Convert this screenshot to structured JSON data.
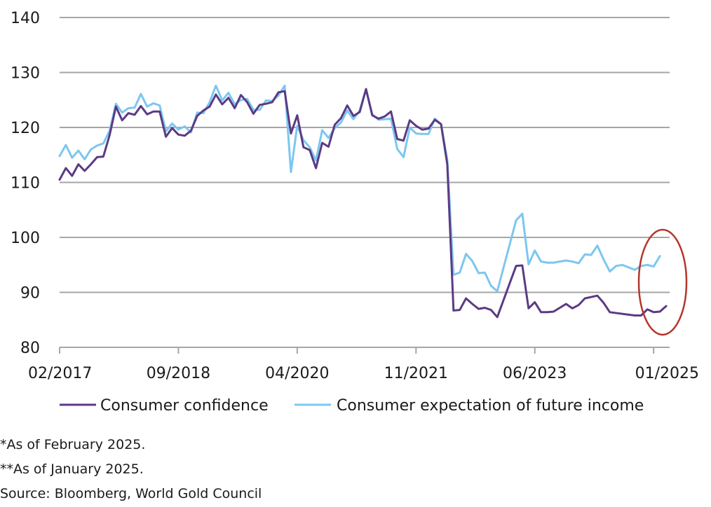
{
  "chart_data": {
    "type": "line",
    "title": "",
    "xlabel": "",
    "ylabel": "",
    "ylim": [
      80,
      140
    ],
    "yticks": [
      80,
      90,
      100,
      110,
      120,
      130,
      140
    ],
    "y_tick_labels": [
      "80",
      "90",
      "100",
      "110",
      "120",
      "130",
      "140"
    ],
    "x_tick_labels": [
      "02/2017",
      "09/2018",
      "04/2020",
      "11/2021",
      "06/2023",
      "01/2025"
    ],
    "x_tick_dates": [
      "2017-02",
      "2018-09",
      "2020-04",
      "2021-11",
      "2023-06",
      "2025-01"
    ],
    "grid": "horizontal",
    "legend_position": "bottom",
    "annotation": "red ellipse highlighting 2024-12 to 2025-02",
    "colors": {
      "consumer_confidence": "#5b3a84",
      "future_income": "#7cc7ef",
      "annotation": "#b5362a",
      "grid": "#a6a6a6"
    },
    "series": [
      {
        "name": "Consumer confidence",
        "color": "#5b3a84",
        "points": [
          [
            "2017-02",
            110.5
          ],
          [
            "2017-03",
            112.6
          ],
          [
            "2017-04",
            111.2
          ],
          [
            "2017-05",
            113.3
          ],
          [
            "2017-06",
            112.1
          ],
          [
            "2017-07",
            113.3
          ],
          [
            "2017-08",
            114.6
          ],
          [
            "2017-09",
            114.7
          ],
          [
            "2017-10",
            118.6
          ],
          [
            "2017-11",
            123.8
          ],
          [
            "2017-12",
            121.3
          ],
          [
            "2018-01",
            122.6
          ],
          [
            "2018-02",
            122.3
          ],
          [
            "2018-03",
            123.9
          ],
          [
            "2018-04",
            122.4
          ],
          [
            "2018-05",
            122.9
          ],
          [
            "2018-06",
            122.9
          ],
          [
            "2018-07",
            118.3
          ],
          [
            "2018-08",
            119.9
          ],
          [
            "2018-09",
            118.7
          ],
          [
            "2018-10",
            118.5
          ],
          [
            "2018-11",
            119.4
          ],
          [
            "2018-12",
            122.1
          ],
          [
            "2019-01",
            123.1
          ],
          [
            "2019-02",
            123.8
          ],
          [
            "2019-03",
            126.0
          ],
          [
            "2019-04",
            124.2
          ],
          [
            "2019-05",
            125.4
          ],
          [
            "2019-06",
            123.5
          ],
          [
            "2019-07",
            125.9
          ],
          [
            "2019-08",
            124.6
          ],
          [
            "2019-09",
            122.5
          ],
          [
            "2019-10",
            124.1
          ],
          [
            "2019-11",
            124.3
          ],
          [
            "2019-12",
            124.6
          ],
          [
            "2020-01",
            126.4
          ],
          [
            "2020-02",
            126.6
          ],
          [
            "2020-03",
            118.9
          ],
          [
            "2020-04",
            122.2
          ],
          [
            "2020-05",
            116.4
          ],
          [
            "2020-06",
            115.9
          ],
          [
            "2020-07",
            112.6
          ],
          [
            "2020-08",
            117.2
          ],
          [
            "2020-09",
            116.5
          ],
          [
            "2020-10",
            120.5
          ],
          [
            "2020-11",
            121.7
          ],
          [
            "2020-12",
            124.0
          ],
          [
            "2021-01",
            122.1
          ],
          [
            "2021-02",
            122.8
          ],
          [
            "2021-03",
            127.0
          ],
          [
            "2021-04",
            122.2
          ],
          [
            "2021-05",
            121.6
          ],
          [
            "2021-06",
            122.0
          ],
          [
            "2021-07",
            122.9
          ],
          [
            "2021-08",
            117.9
          ],
          [
            "2021-09",
            117.6
          ],
          [
            "2021-10",
            121.3
          ],
          [
            "2021-11",
            120.3
          ],
          [
            "2021-12",
            119.6
          ],
          [
            "2022-01",
            119.8
          ],
          [
            "2022-02",
            121.4
          ],
          [
            "2022-03",
            120.6
          ],
          [
            "2022-04",
            113.3
          ],
          [
            "2022-05",
            86.7
          ],
          [
            "2022-06",
            86.8
          ],
          [
            "2022-07",
            88.9
          ],
          [
            "2022-08",
            87.9
          ],
          [
            "2022-09",
            87.0
          ],
          [
            "2022-10",
            87.2
          ],
          [
            "2022-11",
            86.8
          ],
          [
            "2022-12",
            85.5
          ],
          [
            "2023-03",
            94.8
          ],
          [
            "2023-04",
            94.9
          ],
          [
            "2023-05",
            87.1
          ],
          [
            "2023-06",
            88.2
          ],
          [
            "2023-07",
            86.4
          ],
          [
            "2023-08",
            86.4
          ],
          [
            "2023-09",
            86.5
          ],
          [
            "2023-10",
            87.2
          ],
          [
            "2023-11",
            87.9
          ],
          [
            "2023-12",
            87.1
          ],
          [
            "2024-01",
            87.7
          ],
          [
            "2024-02",
            88.9
          ],
          [
            "2024-04",
            89.4
          ],
          [
            "2024-05",
            88.1
          ],
          [
            "2024-06",
            86.4
          ],
          [
            "2024-10",
            85.8
          ],
          [
            "2024-11",
            85.8
          ],
          [
            "2024-12",
            86.9
          ],
          [
            "2025-01",
            86.4
          ],
          [
            "2025-02",
            86.5
          ],
          [
            "2025-03",
            87.5
          ]
        ]
      },
      {
        "name": "Consumer expectation of future income",
        "color": "#7cc7ef",
        "points": [
          [
            "2017-02",
            114.8
          ],
          [
            "2017-03",
            116.8
          ],
          [
            "2017-04",
            114.5
          ],
          [
            "2017-05",
            115.8
          ],
          [
            "2017-06",
            114.2
          ],
          [
            "2017-07",
            116.0
          ],
          [
            "2017-08",
            116.7
          ],
          [
            "2017-09",
            117.1
          ],
          [
            "2017-10",
            119.4
          ],
          [
            "2017-11",
            124.3
          ],
          [
            "2017-12",
            122.7
          ],
          [
            "2018-01",
            123.5
          ],
          [
            "2018-02",
            123.6
          ],
          [
            "2018-03",
            126.1
          ],
          [
            "2018-04",
            123.8
          ],
          [
            "2018-05",
            124.4
          ],
          [
            "2018-06",
            124.0
          ],
          [
            "2018-07",
            119.3
          ],
          [
            "2018-08",
            120.7
          ],
          [
            "2018-09",
            119.6
          ],
          [
            "2018-10",
            120.2
          ],
          [
            "2018-11",
            119.1
          ],
          [
            "2018-12",
            122.7
          ],
          [
            "2019-01",
            122.6
          ],
          [
            "2019-02",
            124.6
          ],
          [
            "2019-03",
            127.6
          ],
          [
            "2019-04",
            124.9
          ],
          [
            "2019-05",
            126.3
          ],
          [
            "2019-06",
            124.2
          ],
          [
            "2019-07",
            125.0
          ],
          [
            "2019-08",
            125.2
          ],
          [
            "2019-09",
            123.2
          ],
          [
            "2019-10",
            123.2
          ],
          [
            "2019-11",
            124.9
          ],
          [
            "2019-12",
            124.8
          ],
          [
            "2020-01",
            125.8
          ],
          [
            "2020-02",
            127.6
          ],
          [
            "2020-03",
            111.9
          ],
          [
            "2020-04",
            120.3
          ],
          [
            "2020-05",
            117.7
          ],
          [
            "2020-06",
            116.4
          ],
          [
            "2020-07",
            114.0
          ],
          [
            "2020-08",
            119.5
          ],
          [
            "2020-09",
            118.1
          ],
          [
            "2020-10",
            119.9
          ],
          [
            "2020-11",
            120.9
          ],
          [
            "2020-12",
            123.1
          ],
          [
            "2021-01",
            121.5
          ],
          [
            "2021-02",
            123.1
          ],
          [
            "2021-03",
            126.9
          ],
          [
            "2021-04",
            122.4
          ],
          [
            "2021-05",
            121.4
          ],
          [
            "2021-06",
            121.5
          ],
          [
            "2021-07",
            121.6
          ],
          [
            "2021-08",
            116.1
          ],
          [
            "2021-09",
            114.6
          ],
          [
            "2021-10",
            120.0
          ],
          [
            "2021-11",
            118.9
          ],
          [
            "2021-12",
            118.8
          ],
          [
            "2022-01",
            118.8
          ],
          [
            "2022-02",
            121.6
          ],
          [
            "2022-03",
            120.6
          ],
          [
            "2022-04",
            114.1
          ],
          [
            "2022-05",
            93.2
          ],
          [
            "2022-06",
            93.6
          ],
          [
            "2022-07",
            97.0
          ],
          [
            "2022-08",
            95.7
          ],
          [
            "2022-09",
            93.5
          ],
          [
            "2022-10",
            93.6
          ],
          [
            "2022-11",
            91.2
          ],
          [
            "2022-12",
            90.2
          ],
          [
            "2023-03",
            103.1
          ],
          [
            "2023-04",
            104.3
          ],
          [
            "2023-05",
            95.1
          ],
          [
            "2023-06",
            97.6
          ],
          [
            "2023-07",
            95.6
          ],
          [
            "2023-08",
            95.4
          ],
          [
            "2023-09",
            95.4
          ],
          [
            "2023-10",
            95.6
          ],
          [
            "2023-11",
            95.8
          ],
          [
            "2023-12",
            95.6
          ],
          [
            "2024-01",
            95.3
          ],
          [
            "2024-02",
            96.9
          ],
          [
            "2024-03",
            96.8
          ],
          [
            "2024-04",
            98.5
          ],
          [
            "2024-05",
            96.0
          ],
          [
            "2024-06",
            93.8
          ],
          [
            "2024-07",
            94.8
          ],
          [
            "2024-08",
            95.0
          ],
          [
            "2024-10",
            94.1
          ],
          [
            "2024-11",
            94.8
          ],
          [
            "2024-12",
            95.0
          ],
          [
            "2025-01",
            94.7
          ],
          [
            "2025-02",
            96.6
          ]
        ]
      }
    ]
  },
  "notes": [
    "*As of February 2025.",
    "**As of January 2025.",
    "Source: Bloomberg, World Gold Council"
  ]
}
